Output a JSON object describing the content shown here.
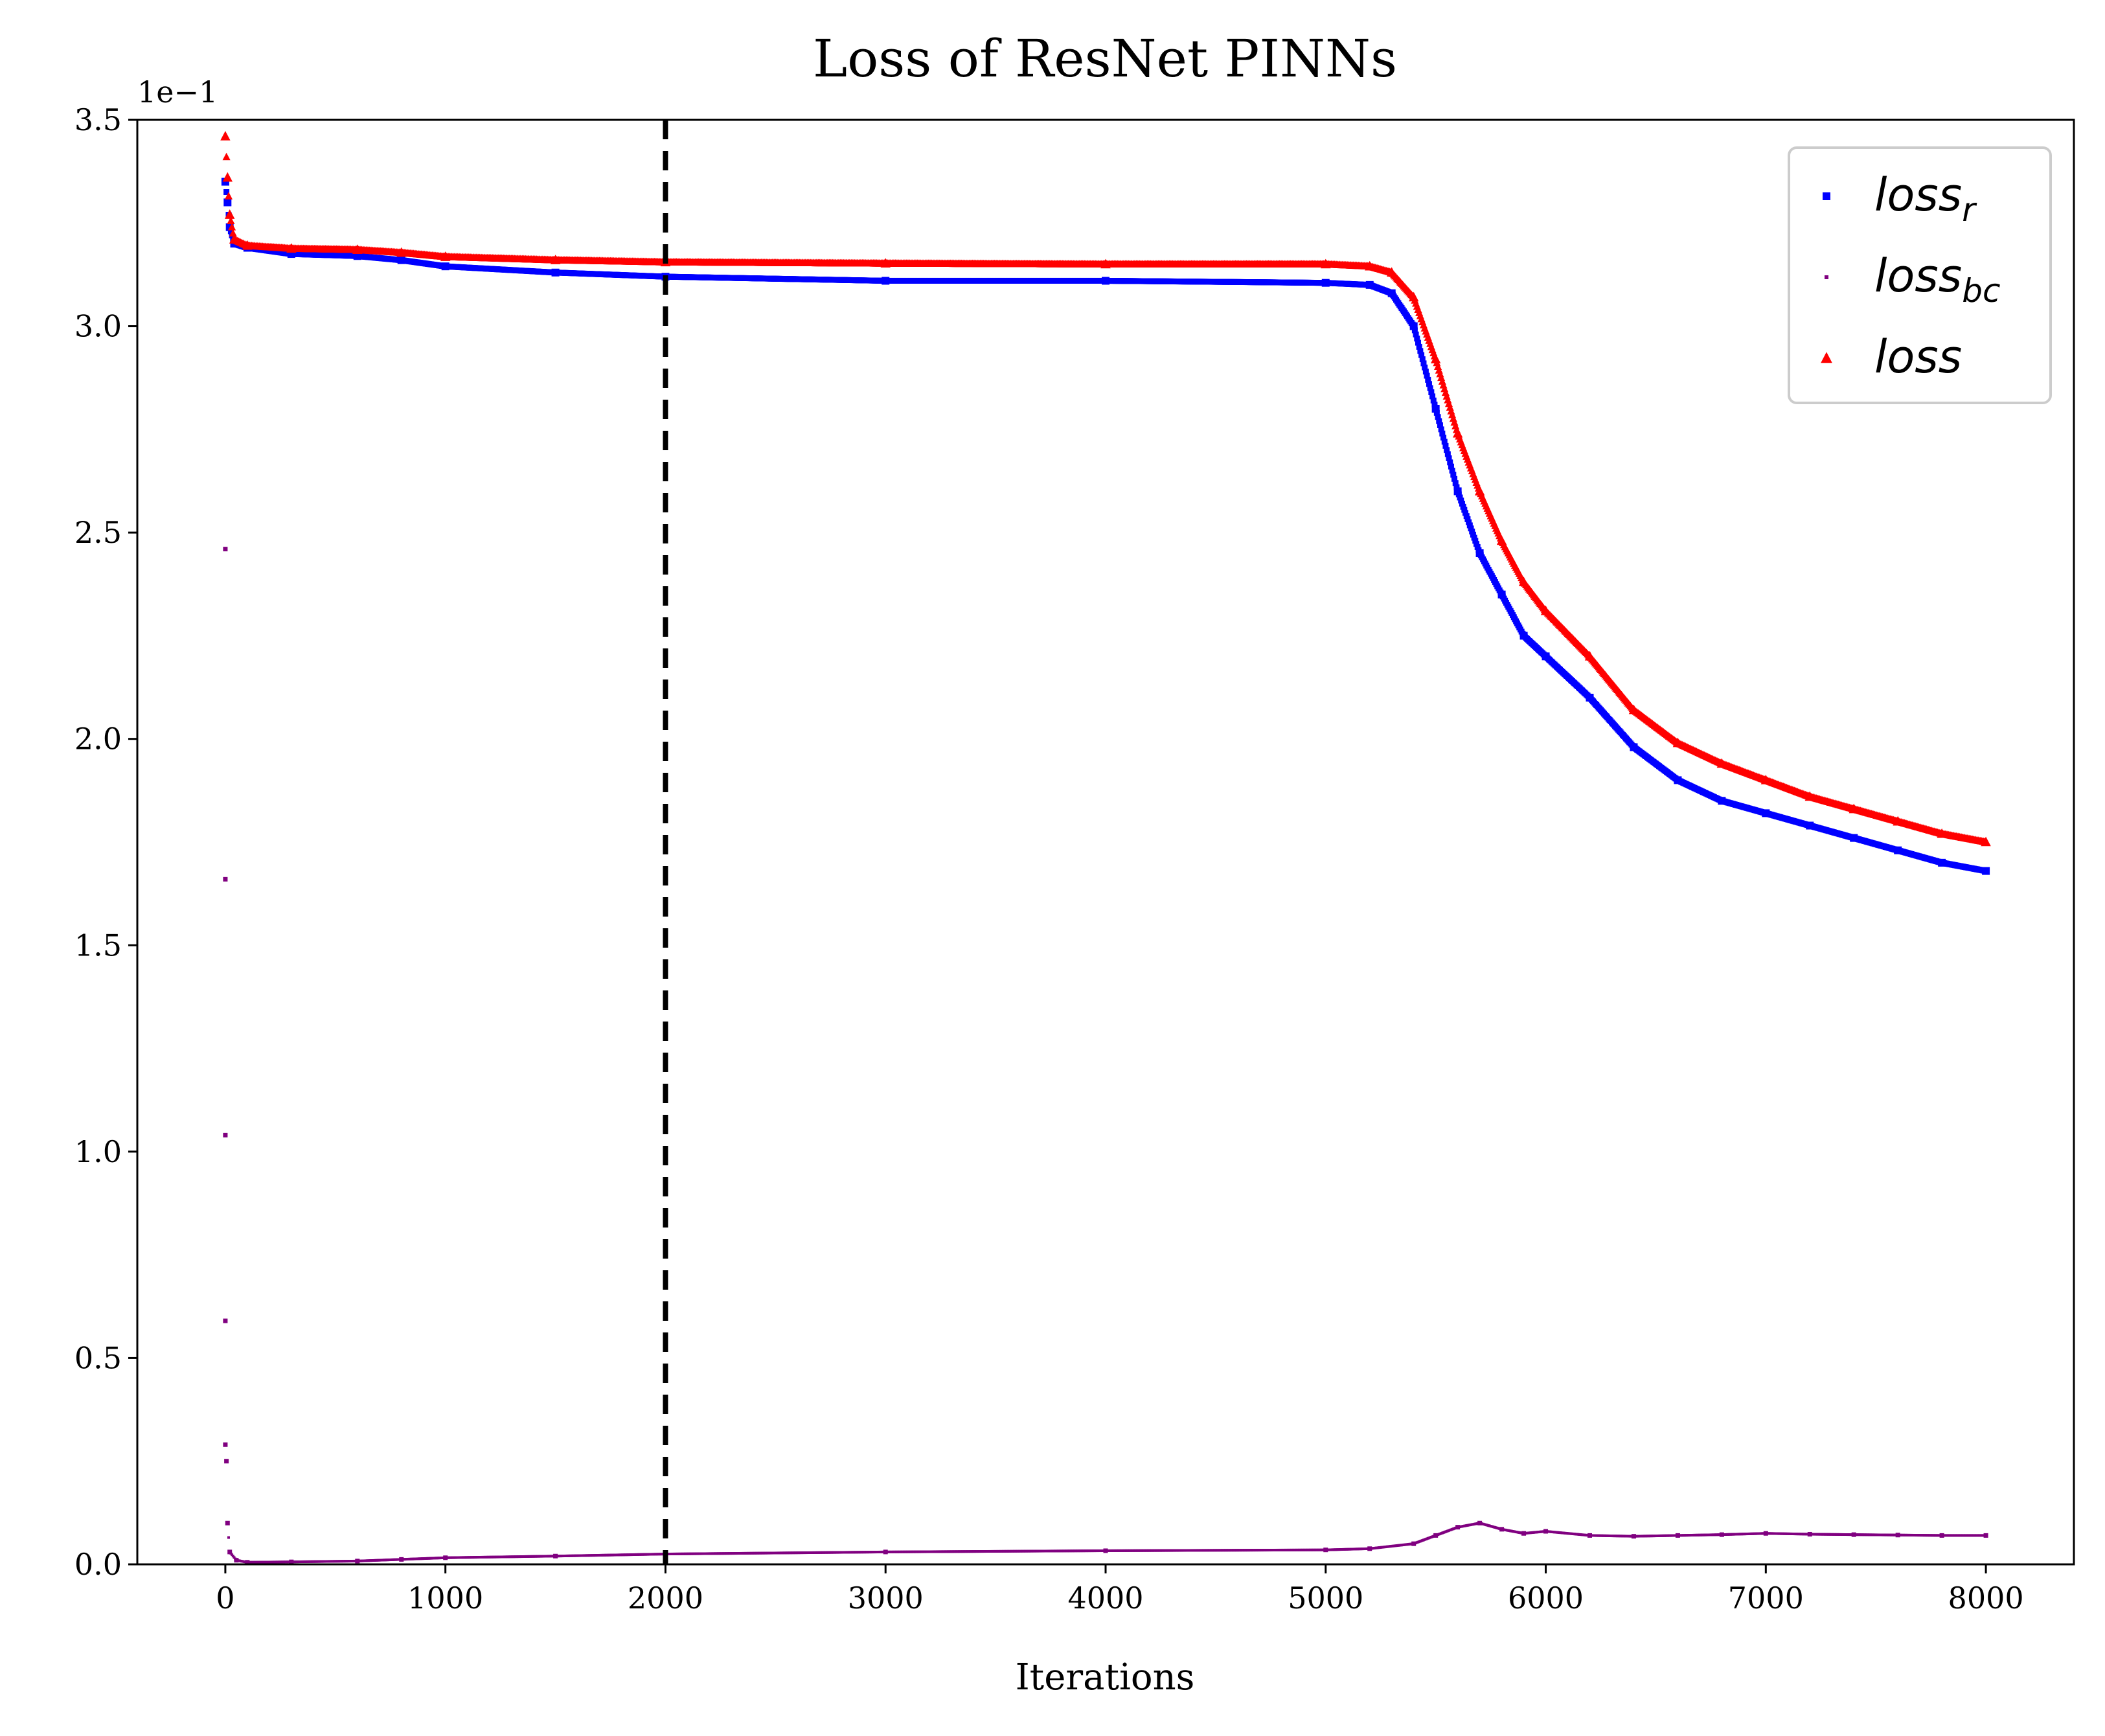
{
  "chart_data": {
    "type": "scatter",
    "title": "Loss of ResNet PINNs",
    "xlabel": "Iterations",
    "ylabel": "",
    "offset_label": "1e−1",
    "xlim": [
      -400,
      8400
    ],
    "ylim": [
      0.0,
      3.5
    ],
    "xticks": [
      0,
      1000,
      2000,
      3000,
      4000,
      5000,
      6000,
      7000,
      8000
    ],
    "xtick_labels": [
      "0",
      "1000",
      "2000",
      "3000",
      "4000",
      "5000",
      "6000",
      "7000",
      "8000"
    ],
    "yticks": [
      0.0,
      0.5,
      1.0,
      1.5,
      2.0,
      2.5,
      3.0,
      3.5
    ],
    "ytick_labels": [
      "0.0",
      "0.5",
      "1.0",
      "1.5",
      "2.0",
      "2.5",
      "3.0",
      "3.5"
    ],
    "grid": false,
    "legend_position": "top-right",
    "vline": {
      "x": 2000,
      "style": "dashed",
      "color": "#000000"
    },
    "series": [
      {
        "name": "loss",
        "name_sub": "r",
        "marker": "square",
        "color": "#0000ff",
        "x": [
          0,
          10,
          20,
          40,
          100,
          300,
          600,
          800,
          1000,
          1500,
          2000,
          3000,
          4000,
          5000,
          5200,
          5300,
          5400,
          5500,
          5600,
          5700,
          5800,
          5900,
          6000,
          6200,
          6400,
          6600,
          6800,
          7000,
          7200,
          7400,
          7600,
          7800,
          8000
        ],
        "y": [
          3.35,
          3.3,
          3.24,
          3.2,
          3.19,
          3.175,
          3.17,
          3.16,
          3.145,
          3.13,
          3.12,
          3.11,
          3.11,
          3.105,
          3.1,
          3.08,
          3.0,
          2.8,
          2.6,
          2.45,
          2.35,
          2.25,
          2.2,
          2.1,
          1.98,
          1.9,
          1.85,
          1.82,
          1.79,
          1.76,
          1.73,
          1.7,
          1.68
        ]
      },
      {
        "name": "loss",
        "name_sub": "bc",
        "marker": "point",
        "color": "#800080",
        "x": [
          0,
          0,
          0,
          0,
          0,
          5,
          10,
          20,
          50,
          100,
          300,
          600,
          800,
          1000,
          1500,
          2000,
          3000,
          4000,
          5000,
          5200,
          5400,
          5500,
          5600,
          5700,
          5800,
          5900,
          6000,
          6200,
          6400,
          6600,
          6800,
          7000,
          7200,
          7400,
          7600,
          7800,
          8000
        ],
        "y": [
          2.46,
          1.66,
          1.04,
          0.59,
          0.29,
          0.25,
          0.1,
          0.03,
          0.01,
          0.005,
          0.006,
          0.008,
          0.012,
          0.016,
          0.02,
          0.025,
          0.03,
          0.033,
          0.035,
          0.038,
          0.05,
          0.07,
          0.09,
          0.1,
          0.085,
          0.075,
          0.08,
          0.07,
          0.068,
          0.07,
          0.072,
          0.075,
          0.073,
          0.072,
          0.071,
          0.07,
          0.07
        ]
      },
      {
        "name": "loss",
        "name_sub": "",
        "marker": "triangle",
        "color": "#ff0000",
        "x": [
          0,
          10,
          20,
          40,
          100,
          300,
          600,
          800,
          1000,
          1500,
          2000,
          3000,
          4000,
          5000,
          5200,
          5300,
          5400,
          5500,
          5600,
          5700,
          5800,
          5900,
          6000,
          6200,
          6400,
          6600,
          6800,
          7000,
          7200,
          7400,
          7600,
          7800,
          8000
        ],
        "y": [
          3.46,
          3.36,
          3.27,
          3.21,
          3.195,
          3.188,
          3.185,
          3.178,
          3.168,
          3.16,
          3.155,
          3.152,
          3.15,
          3.15,
          3.145,
          3.13,
          3.07,
          2.92,
          2.74,
          2.6,
          2.48,
          2.38,
          2.31,
          2.2,
          2.07,
          1.99,
          1.94,
          1.9,
          1.86,
          1.83,
          1.8,
          1.77,
          1.75
        ]
      }
    ]
  }
}
